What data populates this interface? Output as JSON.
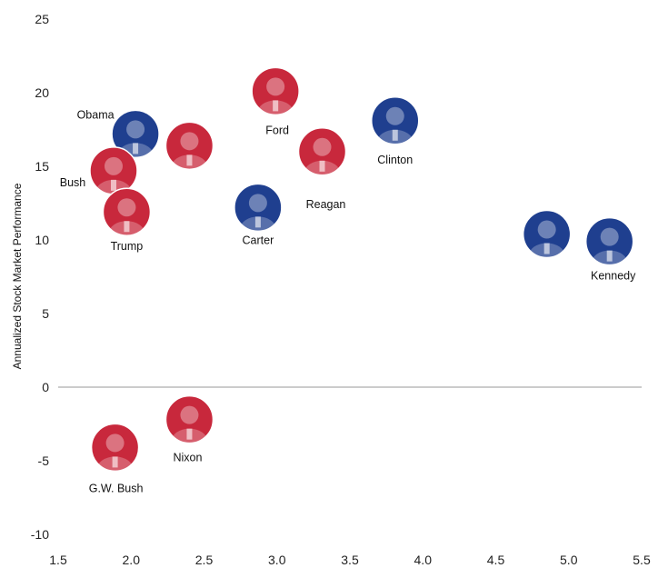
{
  "chart_data": {
    "type": "scatter",
    "title": "",
    "xlabel": "",
    "ylabel": "Annualized Stock Market Performance",
    "xlim": [
      1.5,
      5.5
    ],
    "ylim": [
      -10,
      25
    ],
    "xticks": [
      "1.5",
      "2.0",
      "2.5",
      "3.0",
      "3.5",
      "4.0",
      "4.5",
      "5.0",
      "5.5"
    ],
    "yticks": [
      "25",
      "20",
      "15",
      "10",
      "5",
      "0",
      "-5",
      "-10"
    ],
    "grid": false,
    "colors": {
      "republican": "#c8283c",
      "democrat": "#1f3f8f"
    },
    "points": [
      {
        "label": "Obama",
        "x": 2.03,
        "y": 17.2,
        "party": "democrat"
      },
      {
        "label": "",
        "x": 2.4,
        "y": 16.4,
        "party": "republican"
      },
      {
        "label": "Bush",
        "x": 1.88,
        "y": 14.7,
        "party": "republican"
      },
      {
        "label": "Trump",
        "x": 1.97,
        "y": 11.9,
        "party": "republican"
      },
      {
        "label": "Ford",
        "x": 2.99,
        "y": 20.1,
        "party": "republican"
      },
      {
        "label": "Reagan",
        "x": 3.31,
        "y": 16.0,
        "party": "republican"
      },
      {
        "label": "Carter",
        "x": 2.87,
        "y": 12.2,
        "party": "democrat"
      },
      {
        "label": "Clinton",
        "x": 3.81,
        "y": 18.1,
        "party": "democrat"
      },
      {
        "label": "",
        "x": 4.85,
        "y": 10.4,
        "party": "democrat"
      },
      {
        "label": "Kennedy",
        "x": 5.28,
        "y": 9.9,
        "party": "democrat"
      },
      {
        "label": "Nixon",
        "x": 2.4,
        "y": -2.2,
        "party": "republican"
      },
      {
        "label": "G.W. Bush",
        "x": 1.89,
        "y": -4.1,
        "party": "republican"
      }
    ]
  }
}
